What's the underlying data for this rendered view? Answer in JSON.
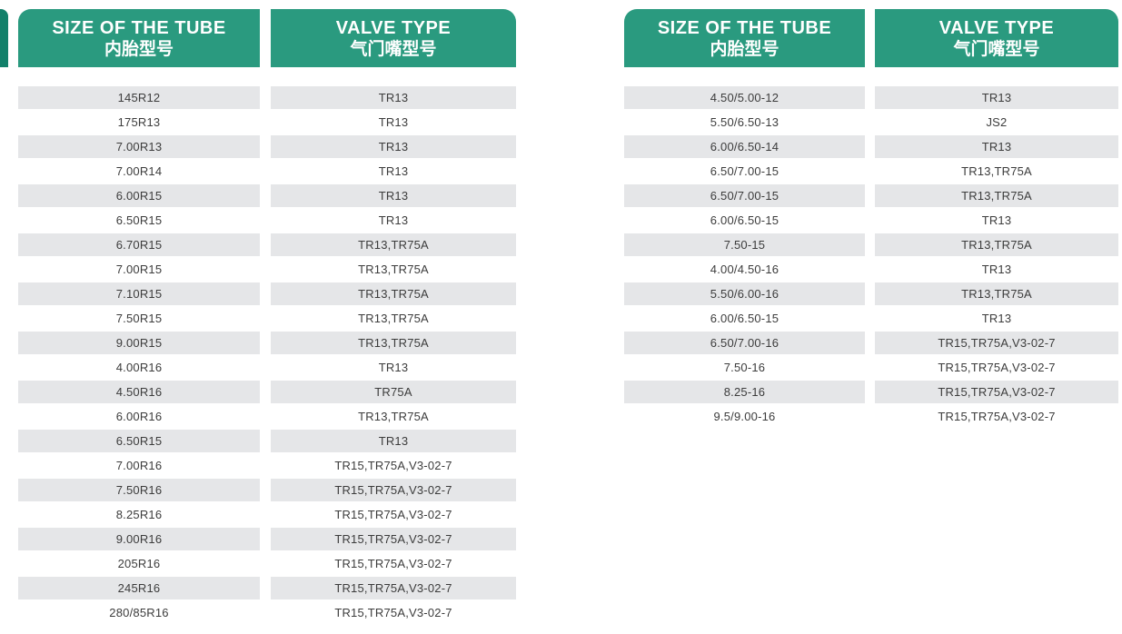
{
  "colors": {
    "header_green": "#2A9A7F",
    "row_gray": "#E5E6E8",
    "edge_teal": "#12806A",
    "text_color": "#3C3C3C"
  },
  "tables": [
    {
      "size_header_en": "SIZE OF THE TUBE",
      "size_header_zh": "内胎型号",
      "valve_header_en": "VALVE TYPE",
      "valve_header_zh": "气门嘴型号",
      "rows": [
        {
          "size": "145R12",
          "valve": "TR13"
        },
        {
          "size": "175R13",
          "valve": "TR13"
        },
        {
          "size": "7.00R13",
          "valve": "TR13"
        },
        {
          "size": "7.00R14",
          "valve": "TR13"
        },
        {
          "size": "6.00R15",
          "valve": "TR13"
        },
        {
          "size": "6.50R15",
          "valve": "TR13"
        },
        {
          "size": "6.70R15",
          "valve": "TR13,TR75A"
        },
        {
          "size": "7.00R15",
          "valve": "TR13,TR75A"
        },
        {
          "size": "7.10R15",
          "valve": "TR13,TR75A"
        },
        {
          "size": "7.50R15",
          "valve": "TR13,TR75A"
        },
        {
          "size": "9.00R15",
          "valve": "TR13,TR75A"
        },
        {
          "size": "4.00R16",
          "valve": "TR13"
        },
        {
          "size": "4.50R16",
          "valve": "TR75A"
        },
        {
          "size": "6.00R16",
          "valve": "TR13,TR75A"
        },
        {
          "size": "6.50R15",
          "valve": "TR13"
        },
        {
          "size": "7.00R16",
          "valve": "TR15,TR75A,V3-02-7"
        },
        {
          "size": "7.50R16",
          "valve": "TR15,TR75A,V3-02-7"
        },
        {
          "size": "8.25R16",
          "valve": "TR15,TR75A,V3-02-7"
        },
        {
          "size": "9.00R16",
          "valve": "TR15,TR75A,V3-02-7"
        },
        {
          "size": "205R16",
          "valve": "TR15,TR75A,V3-02-7"
        },
        {
          "size": "245R16",
          "valve": "TR15,TR75A,V3-02-7"
        },
        {
          "size": "280/85R16",
          "valve": "TR15,TR75A,V3-02-7"
        }
      ]
    },
    {
      "size_header_en": "SIZE OF THE TUBE",
      "size_header_zh": "内胎型号",
      "valve_header_en": "VALVE TYPE",
      "valve_header_zh": "气门嘴型号",
      "rows": [
        {
          "size": "4.50/5.00-12",
          "valve": "TR13"
        },
        {
          "size": "5.50/6.50-13",
          "valve": "JS2"
        },
        {
          "size": "6.00/6.50-14",
          "valve": "TR13"
        },
        {
          "size": "6.50/7.00-15",
          "valve": "TR13,TR75A"
        },
        {
          "size": "6.50/7.00-15",
          "valve": "TR13,TR75A"
        },
        {
          "size": "6.00/6.50-15",
          "valve": "TR13"
        },
        {
          "size": "7.50-15",
          "valve": "TR13,TR75A"
        },
        {
          "size": "4.00/4.50-16",
          "valve": "TR13"
        },
        {
          "size": "5.50/6.00-16",
          "valve": "TR13,TR75A"
        },
        {
          "size": "6.00/6.50-15",
          "valve": "TR13"
        },
        {
          "size": "6.50/7.00-16",
          "valve": "TR15,TR75A,V3-02-7"
        },
        {
          "size": "7.50-16",
          "valve": "TR15,TR75A,V3-02-7"
        },
        {
          "size": "8.25-16",
          "valve": "TR15,TR75A,V3-02-7"
        },
        {
          "size": "9.5/9.00-16",
          "valve": "TR15,TR75A,V3-02-7"
        }
      ]
    }
  ]
}
